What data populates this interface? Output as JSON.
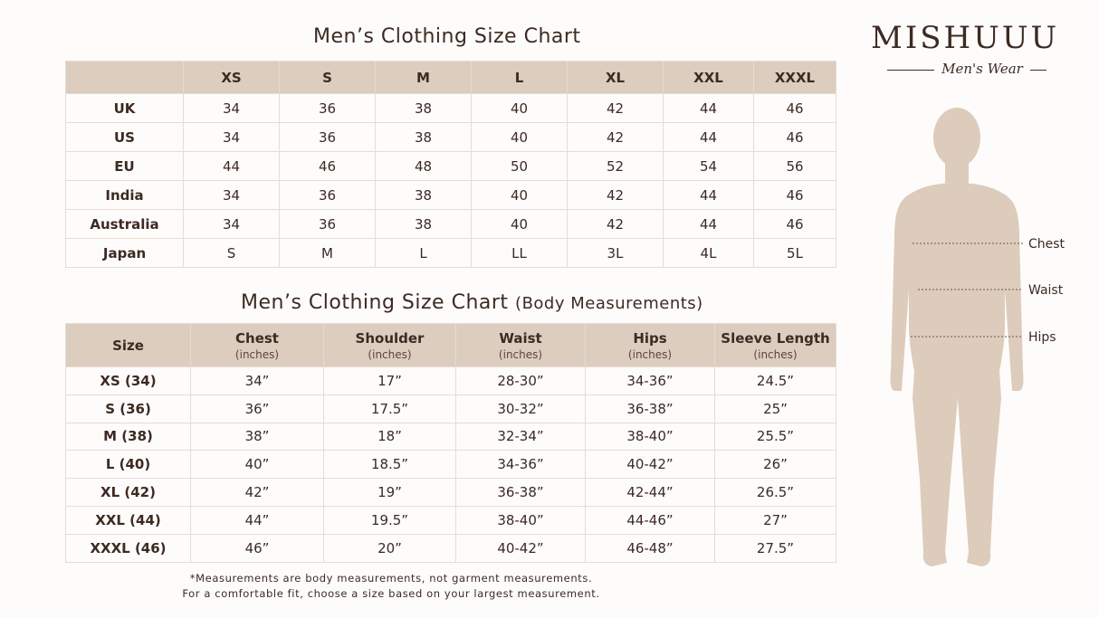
{
  "brand": {
    "name": "MISHUUU",
    "tagline": "Men's Wear"
  },
  "size_table": {
    "title": "Men’s Clothing Size Chart",
    "columns": [
      "XS",
      "S",
      "M",
      "L",
      "XL",
      "XXL",
      "XXXL"
    ],
    "rows": [
      {
        "label": "UK",
        "cells": [
          "34",
          "36",
          "38",
          "40",
          "42",
          "44",
          "46"
        ]
      },
      {
        "label": "US",
        "cells": [
          "34",
          "36",
          "38",
          "40",
          "42",
          "44",
          "46"
        ]
      },
      {
        "label": "EU",
        "cells": [
          "44",
          "46",
          "48",
          "50",
          "52",
          "54",
          "56"
        ]
      },
      {
        "label": "India",
        "cells": [
          "34",
          "36",
          "38",
          "40",
          "42",
          "44",
          "46"
        ]
      },
      {
        "label": "Australia",
        "cells": [
          "34",
          "36",
          "38",
          "40",
          "42",
          "44",
          "46"
        ]
      },
      {
        "label": "Japan",
        "cells": [
          "S",
          "M",
          "L",
          "LL",
          "3L",
          "4L",
          "5L"
        ]
      }
    ]
  },
  "measurement_table": {
    "title": "Men’s Clothing Size Chart",
    "subtitle": "(Body Measurements)",
    "columns": [
      {
        "label": "Size"
      },
      {
        "label": "Chest",
        "unit": "(inches)"
      },
      {
        "label": "Shoulder",
        "unit": "(inches)"
      },
      {
        "label": "Waist",
        "unit": "(inches)"
      },
      {
        "label": "Hips",
        "unit": "(inches)"
      },
      {
        "label": "Sleeve Length",
        "unit": "(inches)"
      }
    ],
    "rows": [
      {
        "label": "XS (34)",
        "cells": [
          "34”",
          "17”",
          "28-30”",
          "34-36”",
          "24.5”"
        ]
      },
      {
        "label": "S (36)",
        "cells": [
          "36”",
          "17.5”",
          "30-32”",
          "36-38”",
          "25”"
        ]
      },
      {
        "label": "M (38)",
        "cells": [
          "38”",
          "18”",
          "32-34”",
          "38-40”",
          "25.5”"
        ]
      },
      {
        "label": "L (40)",
        "cells": [
          "40”",
          "18.5”",
          "34-36”",
          "40-42”",
          "26”"
        ]
      },
      {
        "label": "XL (42)",
        "cells": [
          "42”",
          "19”",
          "36-38”",
          "42-44”",
          "26.5”"
        ]
      },
      {
        "label": "XXL (44)",
        "cells": [
          "44”",
          "19.5”",
          "38-40”",
          "44-46”",
          "27”"
        ]
      },
      {
        "label": "XXXL (46)",
        "cells": [
          "46”",
          "20”",
          "40-42”",
          "46-48”",
          "27.5”"
        ]
      }
    ]
  },
  "footnote": [
    "*Measurements are body measurements, not garment measurements.",
    "For a comfortable fit, choose a size based on your largest measurement."
  ],
  "figure": {
    "labels": [
      "Chest",
      "Waist",
      "Hips"
    ]
  }
}
